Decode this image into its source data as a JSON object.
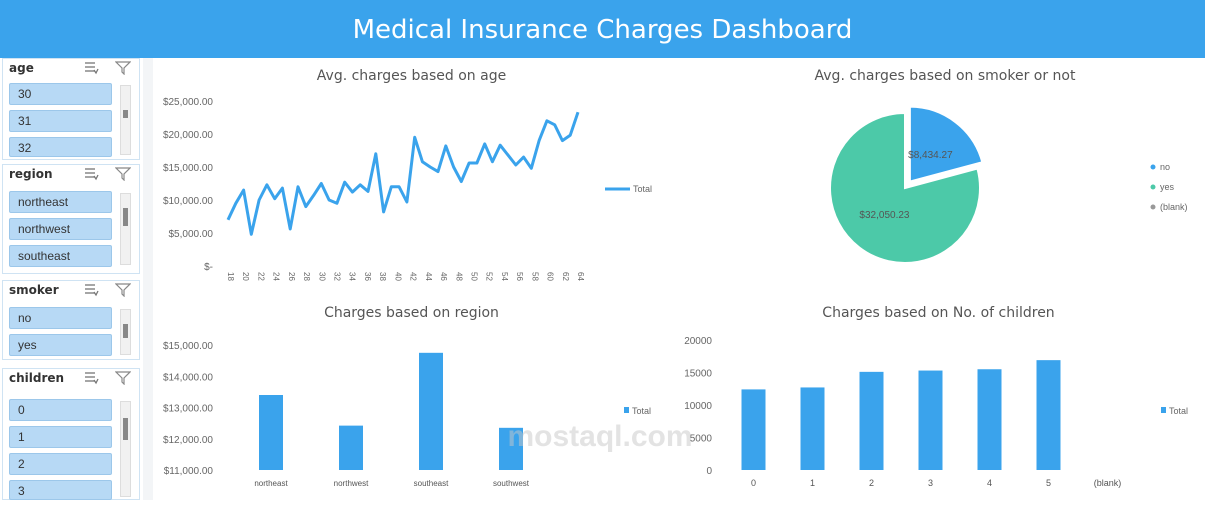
{
  "dashboard": {
    "title": "Medical Insurance Charges Dashboard"
  },
  "colors": {
    "header": "#3aa3ec",
    "bar": "#3aa3ec",
    "pie_yes": "#4cc9a8",
    "pie_no": "#3aa3ec",
    "slicer_item": "#b7d9f5"
  },
  "slicers": {
    "age": {
      "title": "age",
      "items": [
        "30",
        "31",
        "32"
      ]
    },
    "region": {
      "title": "region",
      "items": [
        "northeast",
        "northwest",
        "southeast"
      ]
    },
    "smoker": {
      "title": "smoker",
      "items": [
        "no",
        "yes"
      ]
    },
    "children": {
      "title": "children",
      "items": [
        "0",
        "1",
        "2",
        "3"
      ]
    }
  },
  "charts": {
    "age_line": {
      "title": "Avg. charges based on age",
      "legend": "Total",
      "y_ticks": [
        "$25,000.00",
        "$20,000.00",
        "$15,000.00",
        "$10,000.00",
        "$5,000.00",
        "$-"
      ],
      "ylim": [
        0,
        25000
      ],
      "x_ticks": [
        "18",
        "20",
        "22",
        "24",
        "26",
        "28",
        "30",
        "32",
        "34",
        "36",
        "38",
        "40",
        "42",
        "44",
        "46",
        "48",
        "50",
        "52",
        "54",
        "56",
        "58",
        "60",
        "62",
        "64"
      ],
      "values": [
        7000,
        9500,
        11500,
        4800,
        10000,
        12300,
        10200,
        11800,
        5600,
        12000,
        9000,
        10700,
        12500,
        10000,
        9500,
        12700,
        11200,
        12300,
        11300,
        17000,
        8200,
        12000,
        12000,
        9700,
        19500,
        15800,
        15000,
        14300,
        18200,
        15000,
        12800,
        15600,
        15600,
        18500,
        15800,
        18300,
        16800,
        15300,
        16500,
        14800,
        19000,
        22000,
        21400,
        19000,
        19800,
        23300
      ]
    },
    "smoker_pie": {
      "title": "Avg. charges based on smoker or not",
      "legend": [
        "no",
        "yes",
        "(blank)"
      ],
      "slices": [
        {
          "label": "no",
          "value": 8434.27,
          "text": "$8,434.27"
        },
        {
          "label": "yes",
          "value": 32050.23,
          "text": "$32,050.23"
        }
      ]
    },
    "region_bar": {
      "title": "Charges based on region",
      "legend": "Total",
      "y_ticks": [
        "$15,000.00",
        "$14,000.00",
        "$13,000.00",
        "$12,000.00",
        "$11,000.00"
      ],
      "ylim": [
        11000,
        15000
      ],
      "categories": [
        "northeast",
        "northwest",
        "southeast",
        "southwest"
      ],
      "values": [
        13400,
        12420,
        14750,
        12350
      ]
    },
    "children_bar": {
      "title": "Charges based on No. of children",
      "legend": "Total",
      "y_ticks": [
        "20000",
        "15000",
        "10000",
        "5000",
        "0"
      ],
      "ylim": [
        0,
        20000
      ],
      "categories": [
        "0",
        "1",
        "2",
        "3",
        "4",
        "5",
        "(blank)"
      ],
      "values": [
        12400,
        12700,
        15100,
        15300,
        15500,
        16900,
        0
      ]
    }
  },
  "chart_data": [
    {
      "type": "line",
      "title": "Avg. charges based on age",
      "series": [
        {
          "name": "Total"
        }
      ],
      "ylim": [
        0,
        25000
      ]
    },
    {
      "type": "pie",
      "title": "Avg. charges based on smoker or not",
      "categories": [
        "no",
        "yes"
      ],
      "values": [
        8434.27,
        32050.23
      ]
    },
    {
      "type": "bar",
      "title": "Charges based on region",
      "categories": [
        "northeast",
        "northwest",
        "southeast",
        "southwest"
      ],
      "values": [
        13400,
        12420,
        14750,
        12350
      ],
      "ylim": [
        11000,
        15000
      ]
    },
    {
      "type": "bar",
      "title": "Charges based on No. of children",
      "categories": [
        "0",
        "1",
        "2",
        "3",
        "4",
        "5",
        "(blank)"
      ],
      "values": [
        12400,
        12700,
        15100,
        15300,
        15500,
        16900,
        0
      ],
      "ylim": [
        0,
        20000
      ]
    }
  ],
  "watermark": {
    "text": "mostaql.com"
  }
}
